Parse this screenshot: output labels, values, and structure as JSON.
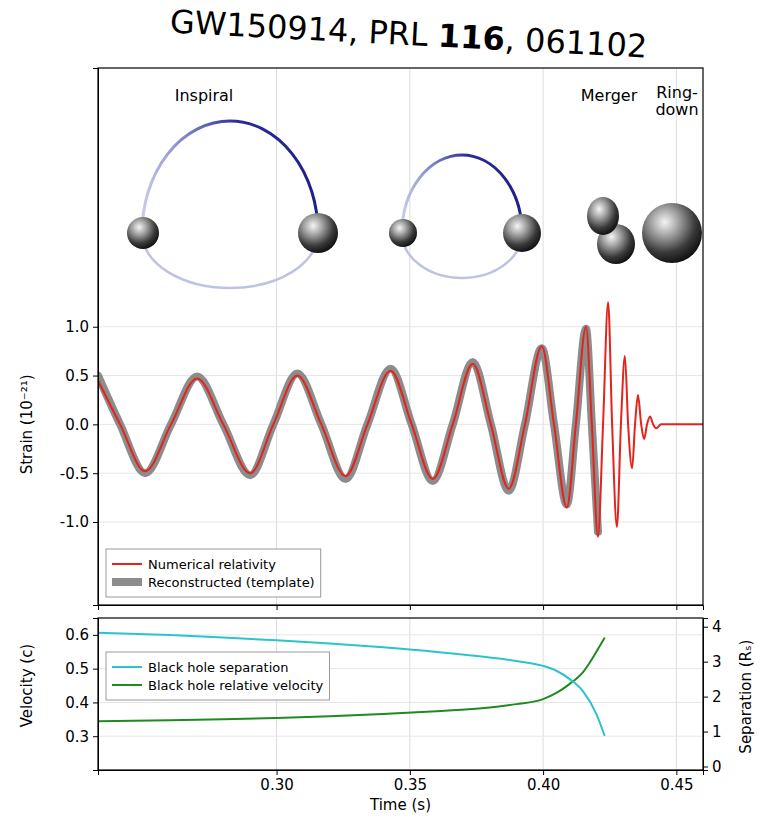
{
  "chart_data": [
    {
      "type": "line",
      "title": "GW150914, PRL 116, 061102",
      "annotations": [
        "Inspiral",
        "Merger",
        "Ring-down"
      ],
      "ylabel": "Strain (10⁻²¹)",
      "xlim": [
        0.233,
        0.46
      ],
      "ylim": [
        -1.85,
        3.65
      ],
      "xticks": [
        0.3,
        0.35,
        0.4,
        0.45
      ],
      "yticks": [
        {
          "value": -1,
          "label": "-1.0"
        },
        -0.5,
        {
          "value": 0,
          "label": "0.0"
        },
        0.5,
        {
          "value": 1,
          "label": "1.0"
        }
      ],
      "tick_labels": "y",
      "grid": true,
      "legend": "lower left",
      "series": [
        {
          "name": "Numerical relativity",
          "color": "#e3231c",
          "line_style": "solid",
          "x": [
            0.233,
            0.2413,
            0.2507,
            0.2604,
            0.2702,
            0.28,
            0.2901,
            0.2988,
            0.3078,
            0.3168,
            0.3259,
            0.3341,
            0.3428,
            0.3507,
            0.3586,
            0.3661,
            0.3736,
            0.3804,
            0.3871,
            0.3932,
            0.3995,
            0.4041,
            0.4089,
            0.4123,
            0.4161,
            0.4183,
            0.4206,
            0.4225,
            0.4244,
            0.4259,
            0.4277,
            0.4292,
            0.4307,
            0.4319,
            0.4334,
            0.4345,
            0.4356,
            0.4368,
            0.4379,
            0.439,
            0.4401,
            0.4413,
            0.4424,
            0.4443,
            0.46
          ],
          "values": [
            0.45,
            0,
            -0.48,
            0,
            0.47,
            0,
            -0.5,
            0,
            0.5,
            0,
            -0.53,
            0,
            0.55,
            0,
            -0.56,
            0,
            0.62,
            0,
            -0.66,
            0,
            0.8,
            0,
            -0.85,
            0,
            1.0,
            0,
            -1.15,
            0,
            1.25,
            0,
            -1.05,
            0,
            0.7,
            0,
            -0.45,
            0,
            0.3,
            0,
            -0.15,
            0,
            0.08,
            0,
            -0.04,
            0,
            0
          ]
        },
        {
          "name": "Reconstructed (template)",
          "color": "#8c8c8c",
          "line_style": "thick",
          "x": [
            0.233,
            0.2413,
            0.2507,
            0.2604,
            0.2702,
            0.28,
            0.2901,
            0.2988,
            0.3078,
            0.3168,
            0.3259,
            0.3341,
            0.3428,
            0.3507,
            0.3586,
            0.3661,
            0.3736,
            0.3804,
            0.3871,
            0.3932,
            0.3995,
            0.4041,
            0.4089,
            0.4123,
            0.4161,
            0.4183,
            0.4206
          ],
          "values": [
            0.5,
            0,
            -0.5,
            0,
            0.49,
            0,
            -0.52,
            0,
            0.52,
            0,
            -0.56,
            0,
            0.57,
            0,
            -0.58,
            0,
            0.64,
            0,
            -0.68,
            0,
            0.78,
            0,
            -0.82,
            0,
            0.98,
            0,
            -1.1
          ]
        }
      ]
    },
    {
      "type": "line",
      "xlabel": "Time (s)",
      "ylabel": "Velocity (c)",
      "y2label": "Separation (Rₛ)",
      "xlim": [
        0.233,
        0.46
      ],
      "ylim": [
        0.2,
        0.65
      ],
      "y2lim": [
        -0.1,
        4.25
      ],
      "xticks": [
        {
          "value": 0.3,
          "label": "0.30"
        },
        0.35,
        {
          "value": 0.4,
          "label": "0.40"
        },
        0.45
      ],
      "yticks": [
        0.3,
        0.4,
        0.5,
        0.6
      ],
      "y2ticks": [
        0,
        1,
        2,
        3,
        4
      ],
      "grid": true,
      "legend": "center left",
      "series": [
        {
          "name": "Black hole separation",
          "color": "#2cc3cc",
          "line_style": "solid",
          "axis": "y2",
          "x": [
            0.233,
            0.26,
            0.28,
            0.3,
            0.32,
            0.34,
            0.36,
            0.38,
            0.39,
            0.4,
            0.405,
            0.41,
            0.415,
            0.42,
            0.423
          ],
          "values": [
            3.83,
            3.76,
            3.69,
            3.61,
            3.52,
            3.41,
            3.28,
            3.12,
            3.02,
            2.88,
            2.74,
            2.5,
            2.15,
            1.5,
            0.9
          ]
        },
        {
          "name": "Black hole relative velocity",
          "color": "#1f8a1f",
          "line_style": "solid",
          "x": [
            0.233,
            0.26,
            0.28,
            0.3,
            0.32,
            0.34,
            0.36,
            0.38,
            0.39,
            0.4,
            0.405,
            0.41,
            0.415,
            0.42,
            0.423
          ],
          "values": [
            0.344,
            0.347,
            0.35,
            0.354,
            0.359,
            0.366,
            0.374,
            0.385,
            0.395,
            0.41,
            0.428,
            0.455,
            0.49,
            0.55,
            0.59
          ]
        }
      ]
    }
  ]
}
